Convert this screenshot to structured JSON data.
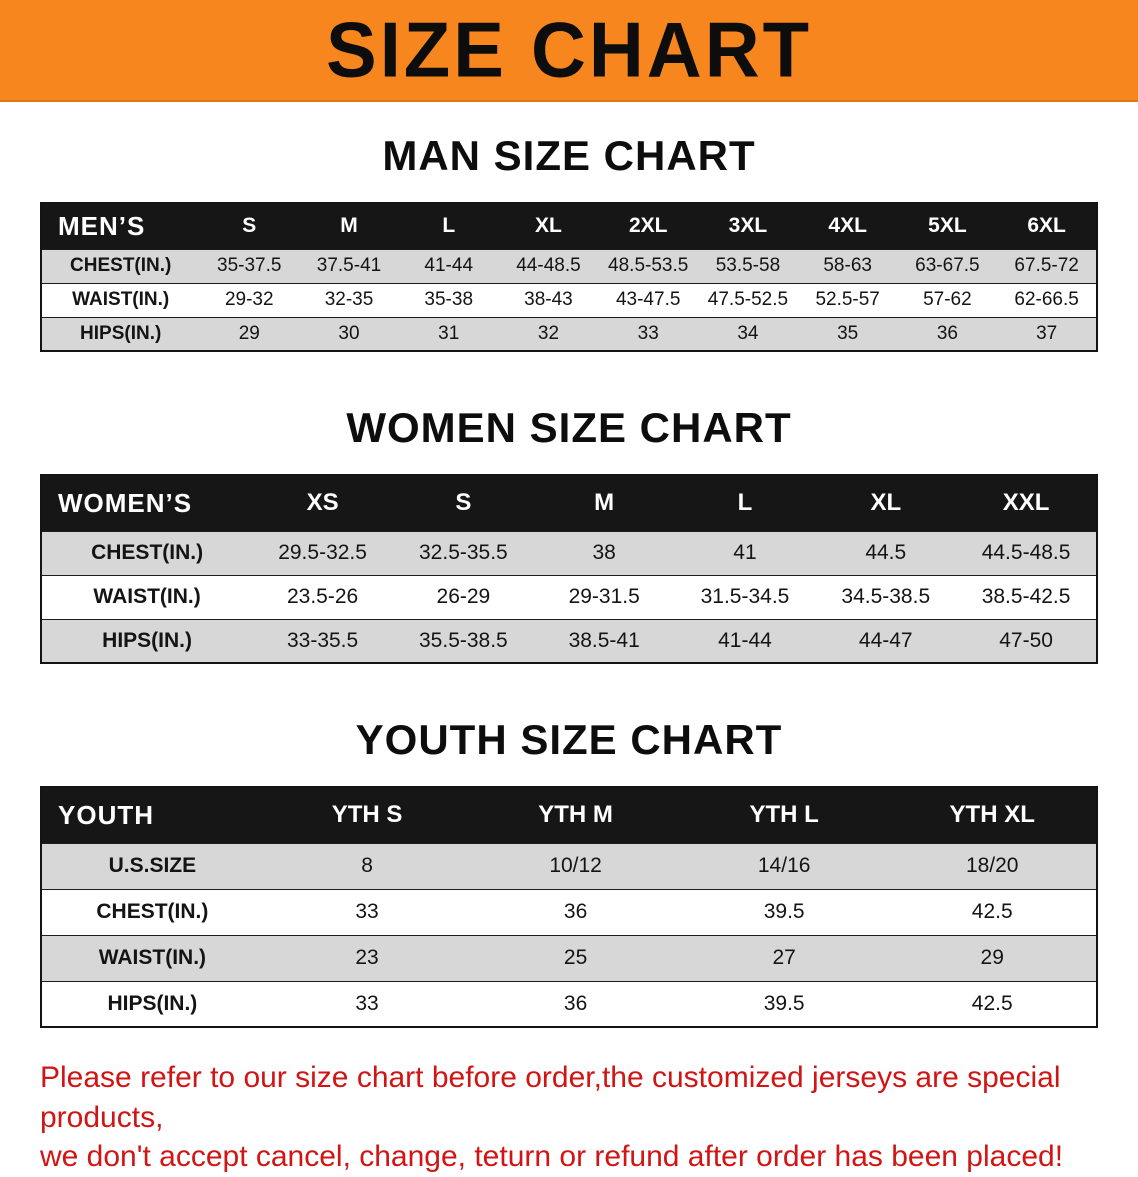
{
  "banner": {
    "title": "SIZE CHART"
  },
  "theme": {
    "banner_bg": "#f6861d",
    "header_row_bg": "#161616",
    "stripe_row_bg": "#d7d7d7",
    "disclaimer_color": "#d11414"
  },
  "sections": [
    {
      "id": "men",
      "heading": "MAN SIZE CHART",
      "table": {
        "header": [
          "MEN’S",
          "S",
          "M",
          "L",
          "XL",
          "2XL",
          "3XL",
          "4XL",
          "5XL",
          "6XL"
        ],
        "rows": [
          {
            "label": "CHEST(IN.)",
            "values": [
              "35-37.5",
              "37.5-41",
              "41-44",
              "44-48.5",
              "48.5-53.5",
              "53.5-58",
              "58-63",
              "63-67.5",
              "67.5-72"
            ]
          },
          {
            "label": "WAIST(IN.)",
            "values": [
              "29-32",
              "32-35",
              "35-38",
              "38-43",
              "43-47.5",
              "47.5-52.5",
              "52.5-57",
              "57-62",
              "62-66.5"
            ]
          },
          {
            "label": "HIPS(IN.)",
            "values": [
              "29",
              "30",
              "31",
              "32",
              "33",
              "34",
              "35",
              "36",
              "37"
            ]
          }
        ]
      }
    },
    {
      "id": "women",
      "heading": "WOMEN SIZE CHART",
      "table": {
        "header": [
          "WOMEN’S",
          "XS",
          "S",
          "M",
          "L",
          "XL",
          "XXL"
        ],
        "rows": [
          {
            "label": "CHEST(IN.)",
            "values": [
              "29.5-32.5",
              "32.5-35.5",
              "38",
              "41",
              "44.5",
              "44.5-48.5"
            ]
          },
          {
            "label": "WAIST(IN.)",
            "values": [
              "23.5-26",
              "26-29",
              "29-31.5",
              "31.5-34.5",
              "34.5-38.5",
              "38.5-42.5"
            ]
          },
          {
            "label": "HIPS(IN.)",
            "values": [
              "33-35.5",
              "35.5-38.5",
              "38.5-41",
              "41-44",
              "44-47",
              "47-50"
            ]
          }
        ]
      }
    },
    {
      "id": "youth",
      "heading": "YOUTH SIZE CHART",
      "table": {
        "header": [
          "YOUTH",
          "YTH S",
          "YTH M",
          "YTH L",
          "YTH XL"
        ],
        "rows": [
          {
            "label": "U.S.SIZE",
            "values": [
              "8",
              "10/12",
              "14/16",
              "18/20"
            ]
          },
          {
            "label": "CHEST(IN.)",
            "values": [
              "33",
              "36",
              "39.5",
              "42.5"
            ]
          },
          {
            "label": "WAIST(IN.)",
            "values": [
              "23",
              "25",
              "27",
              "29"
            ]
          },
          {
            "label": "HIPS(IN.)",
            "values": [
              "33",
              "36",
              "39.5",
              "42.5"
            ]
          }
        ]
      }
    }
  ],
  "disclaimer": {
    "line1": "Please refer to our size chart before order,the customized jerseys are special products,",
    "line2": "we don't accept cancel, change, teturn or refund after order has been placed!"
  }
}
